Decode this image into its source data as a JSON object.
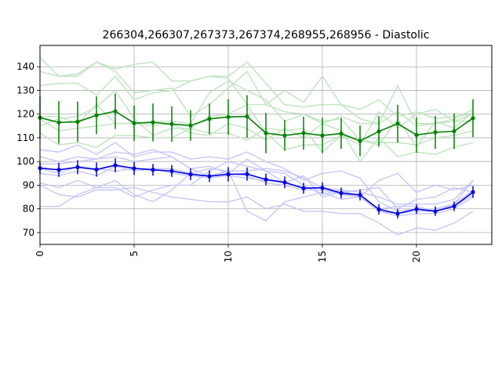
{
  "chart_data": {
    "type": "line",
    "title": "266304,266307,267373,267374,268955,268956 - Diastolic",
    "xlabel": "",
    "ylabel": "",
    "xlim": [
      0,
      24
    ],
    "ylim": [
      65,
      149
    ],
    "x_ticks": [
      "0",
      "5",
      "10",
      "15",
      "20"
    ],
    "y_ticks": [
      "70",
      "80",
      "90",
      "100",
      "110",
      "120",
      "130",
      "140"
    ],
    "grid": true,
    "legend": "none",
    "x": [
      0,
      1,
      2,
      3,
      4,
      5,
      6,
      7,
      8,
      9,
      10,
      11,
      12,
      13,
      14,
      15,
      16,
      17,
      18,
      19,
      20,
      21,
      22,
      23
    ],
    "series_green_colors": {
      "light": "#bfe3bf",
      "mean": "#008000"
    },
    "series_blue_colors": {
      "light": "#c6c6f7",
      "mean": "#0000e0"
    },
    "green_individual": [
      [
        144,
        136,
        136,
        142,
        138,
        129,
        130,
        131,
        119,
        124,
        131,
        138,
        124,
        130,
        125,
        136,
        124,
        122,
        126,
        119,
        121,
        118,
        119,
        120
      ],
      [
        138,
        136,
        137,
        142,
        139,
        141,
        142,
        134,
        134,
        136,
        136,
        142,
        133,
        124,
        123,
        124,
        124,
        118,
        116,
        132,
        116,
        116,
        117,
        120
      ],
      [
        132,
        133,
        133,
        128,
        136,
        126,
        129,
        130,
        134,
        136,
        135,
        124,
        124,
        121,
        120,
        116,
        119,
        116,
        116,
        121,
        115,
        116,
        118,
        122
      ],
      [
        118,
        113,
        114,
        115,
        116,
        116,
        117,
        117,
        116,
        129,
        134,
        130,
        126,
        117,
        120,
        117,
        118,
        109,
        107,
        118,
        106,
        117,
        114,
        121
      ],
      [
        112,
        107,
        108,
        106,
        111,
        111,
        110,
        110,
        114,
        112,
        112,
        109,
        114,
        113,
        114,
        104,
        111,
        107,
        121,
        114,
        120,
        122,
        117,
        117
      ],
      [
        119,
        119,
        116,
        124,
        116,
        116,
        115,
        116,
        112,
        111,
        116,
        114,
        109,
        114,
        110,
        116,
        113,
        100,
        110,
        102,
        104,
        103,
        106,
        108
      ],
      [
        115,
        118,
        119,
        123,
        130,
        118,
        111,
        114,
        114,
        119,
        120,
        124,
        112,
        105,
        107,
        107,
        111,
        109,
        108,
        108,
        107,
        110,
        111,
        113
      ]
    ],
    "green_mean": [
      118.5,
      116.5,
      116.8,
      119.5,
      121.2,
      116.2,
      116.5,
      115.8,
      115.2,
      118,
      118.8,
      119,
      112,
      111,
      112,
      111,
      111.8,
      108.7,
      112.7,
      116,
      111.2,
      112.3,
      112.8,
      118.3
    ],
    "green_err": [
      9,
      9,
      8.5,
      8,
      7.5,
      7.5,
      8,
      7.5,
      6.5,
      6.5,
      7.5,
      9,
      8.5,
      6.5,
      7,
      7.5,
      6.5,
      6.5,
      6.5,
      8,
      7.5,
      7,
      7.5,
      8
    ],
    "blue_individual": [
      [
        105,
        104,
        107,
        103,
        108,
        102,
        104,
        104,
        101,
        102,
        101,
        104,
        100,
        97,
        92,
        95,
        96,
        93,
        83,
        79,
        80,
        80,
        82,
        92
      ],
      [
        102,
        100,
        102,
        101,
        104,
        103,
        105,
        102,
        97,
        98,
        95,
        101,
        96,
        95,
        90,
        86,
        88,
        87,
        85,
        82,
        82,
        82,
        84,
        92
      ],
      [
        99,
        99,
        100,
        101,
        102,
        100,
        101,
        102,
        97,
        94,
        96,
        96,
        97,
        96,
        93,
        89,
        88,
        85,
        80,
        81,
        81,
        79,
        82,
        88
      ],
      [
        97,
        95,
        98,
        97,
        96,
        97,
        97,
        97,
        95,
        94,
        95,
        94,
        91,
        90,
        88,
        88,
        86,
        85,
        79,
        77,
        78,
        78,
        80,
        85
      ],
      [
        95,
        94,
        96,
        94,
        98,
        96,
        97,
        95,
        94,
        93,
        94,
        93,
        92,
        91,
        89,
        89,
        86,
        86,
        79,
        78,
        79,
        79,
        81,
        86
      ],
      [
        91,
        89,
        92,
        89,
        89,
        85,
        88,
        90,
        90,
        96,
        100,
        98,
        96,
        91,
        94,
        85,
        87,
        88,
        89,
        80,
        84,
        85,
        89,
        87
      ],
      [
        90,
        86,
        85,
        88,
        88,
        89,
        87,
        85,
        84,
        83,
        83,
        85,
        80,
        82,
        79,
        79,
        78,
        78,
        74,
        69,
        72,
        71,
        74,
        79
      ],
      [
        81,
        81,
        86,
        89,
        92,
        86,
        83,
        88,
        95,
        97,
        96,
        79,
        75,
        83,
        85,
        87,
        84,
        85,
        92,
        95,
        87,
        90,
        88,
        90
      ]
    ],
    "blue_mean": [
      97.2,
      96.5,
      97.6,
      96.6,
      98.4,
      97.1,
      96.5,
      96,
      94.6,
      93.8,
      94.6,
      94.7,
      92.4,
      91.2,
      88.7,
      88.9,
      86.7,
      85.9,
      79.8,
      78,
      79.9,
      79,
      81.1,
      87.1
    ],
    "blue_err": [
      2.5,
      3,
      3,
      3,
      3,
      2.8,
      2.5,
      2.5,
      2.5,
      2.5,
      3,
      2.8,
      2.5,
      2.5,
      2.3,
      2.3,
      2.3,
      2.3,
      2.2,
      2,
      2,
      2,
      2,
      2.5
    ]
  }
}
